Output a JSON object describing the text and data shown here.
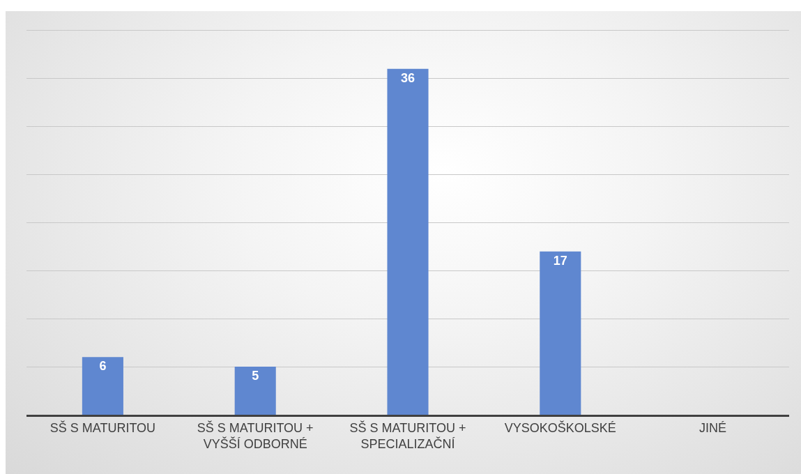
{
  "chart_data": {
    "type": "bar",
    "categories": [
      "SŠ S MATURITOU",
      "SŠ S MATURITOU + VYŠŠÍ ODBORNÉ",
      "SŠ S MATURITOU + SPECIALIZAČNÍ",
      "VYSOKOŠKOLSKÉ",
      "JINÉ"
    ],
    "values": [
      6,
      5,
      36,
      17,
      0
    ],
    "value_labels": [
      "6",
      "5",
      "36",
      "17",
      null
    ],
    "color": "#5f87d0",
    "ylim": [
      0,
      42
    ],
    "yticks": [
      {
        "value": 5,
        "label": null
      },
      {
        "value": 10,
        "label": null
      },
      {
        "value": 15,
        "label": null
      },
      {
        "value": 20,
        "label": null
      },
      {
        "value": 25,
        "label": null
      },
      {
        "value": 30,
        "label": null
      },
      {
        "value": 35,
        "label": null
      },
      {
        "value": 40,
        "label": null
      }
    ],
    "grid": "y",
    "tick_labels": "x"
  }
}
